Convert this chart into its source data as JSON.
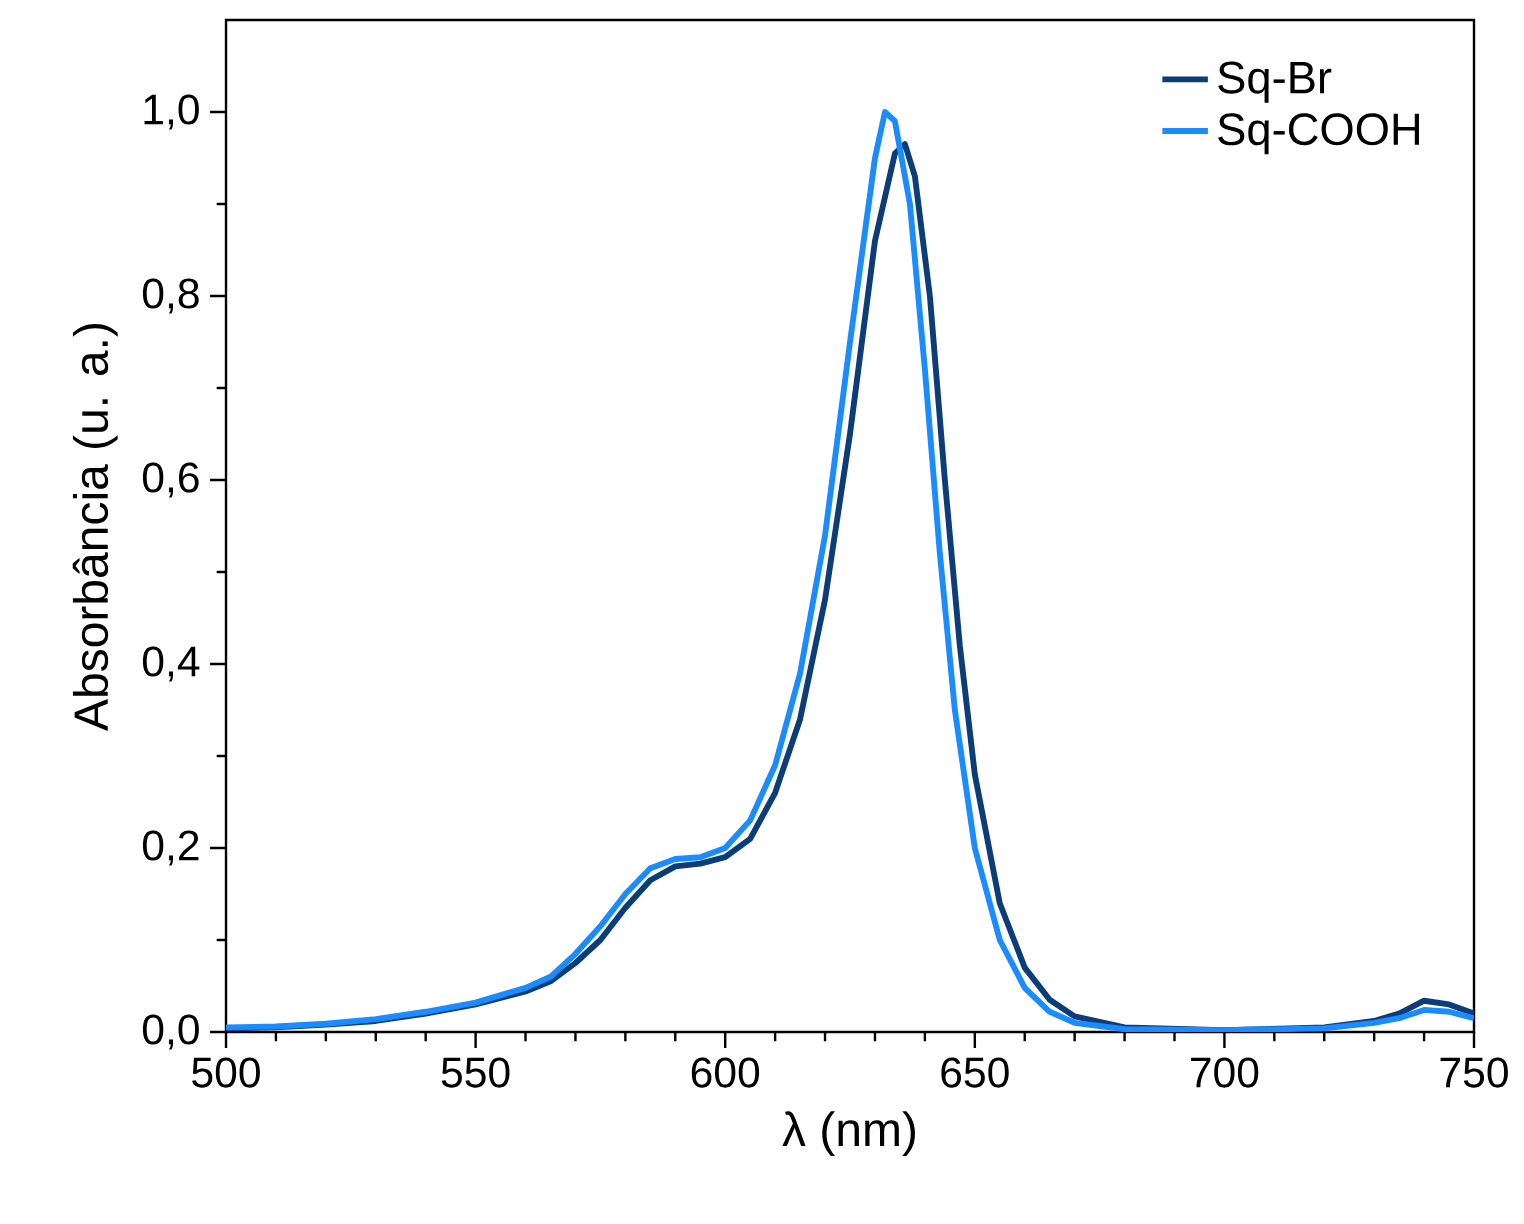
{
  "chart_data": {
    "type": "line",
    "xlabel": "λ (nm)",
    "ylabel": "Absorbância (u. a.)",
    "xlim": [
      500,
      750
    ],
    "xticks": [
      500,
      550,
      600,
      650,
      700,
      750
    ],
    "ylim": [
      0,
      1.1
    ],
    "yticks": [
      {
        "value": 0,
        "label": "0,0"
      },
      {
        "value": 0.2,
        "label": "0,2"
      },
      {
        "value": 0.4,
        "label": "0,4"
      },
      {
        "value": 0.6,
        "label": "0,6"
      },
      {
        "value": 0.8,
        "label": "0,8"
      },
      {
        "value": 1.0,
        "label": "1,0"
      }
    ],
    "grid": false,
    "legend": "top right",
    "marker": "none",
    "line_style": "solid",
    "series": [
      {
        "name": "Sq-Br",
        "color": "#0c3d78",
        "x": [
          500,
          510,
          520,
          530,
          540,
          550,
          560,
          565,
          570,
          575,
          580,
          585,
          590,
          595,
          600,
          605,
          610,
          615,
          620,
          625,
          630,
          634,
          636,
          638,
          641,
          644,
          647,
          650,
          655,
          660,
          665,
          670,
          680,
          700,
          720,
          730,
          735,
          740,
          745,
          750
        ],
        "values": [
          0.004,
          0.005,
          0.008,
          0.012,
          0.02,
          0.03,
          0.044,
          0.055,
          0.075,
          0.1,
          0.135,
          0.165,
          0.18,
          0.183,
          0.19,
          0.21,
          0.26,
          0.34,
          0.47,
          0.65,
          0.86,
          0.955,
          0.965,
          0.93,
          0.8,
          0.6,
          0.42,
          0.28,
          0.14,
          0.07,
          0.035,
          0.017,
          0.005,
          0.002,
          0.005,
          0.012,
          0.02,
          0.034,
          0.03,
          0.02
        ]
      },
      {
        "name": "Sq-COOH",
        "color": "#1a8cff",
        "x": [
          500,
          510,
          520,
          530,
          540,
          550,
          560,
          565,
          570,
          575,
          580,
          585,
          590,
          595,
          600,
          605,
          610,
          615,
          620,
          625,
          630,
          632,
          634,
          637,
          640,
          643,
          646,
          650,
          655,
          660,
          665,
          670,
          680,
          700,
          720,
          730,
          735,
          740,
          745,
          750
        ],
        "values": [
          0.005,
          0.006,
          0.009,
          0.014,
          0.022,
          0.032,
          0.048,
          0.06,
          0.085,
          0.115,
          0.15,
          0.178,
          0.188,
          0.19,
          0.2,
          0.23,
          0.29,
          0.39,
          0.54,
          0.75,
          0.95,
          1.0,
          0.99,
          0.9,
          0.72,
          0.52,
          0.35,
          0.2,
          0.1,
          0.048,
          0.022,
          0.01,
          0.003,
          0.002,
          0.004,
          0.01,
          0.015,
          0.024,
          0.022,
          0.015
        ]
      }
    ]
  }
}
